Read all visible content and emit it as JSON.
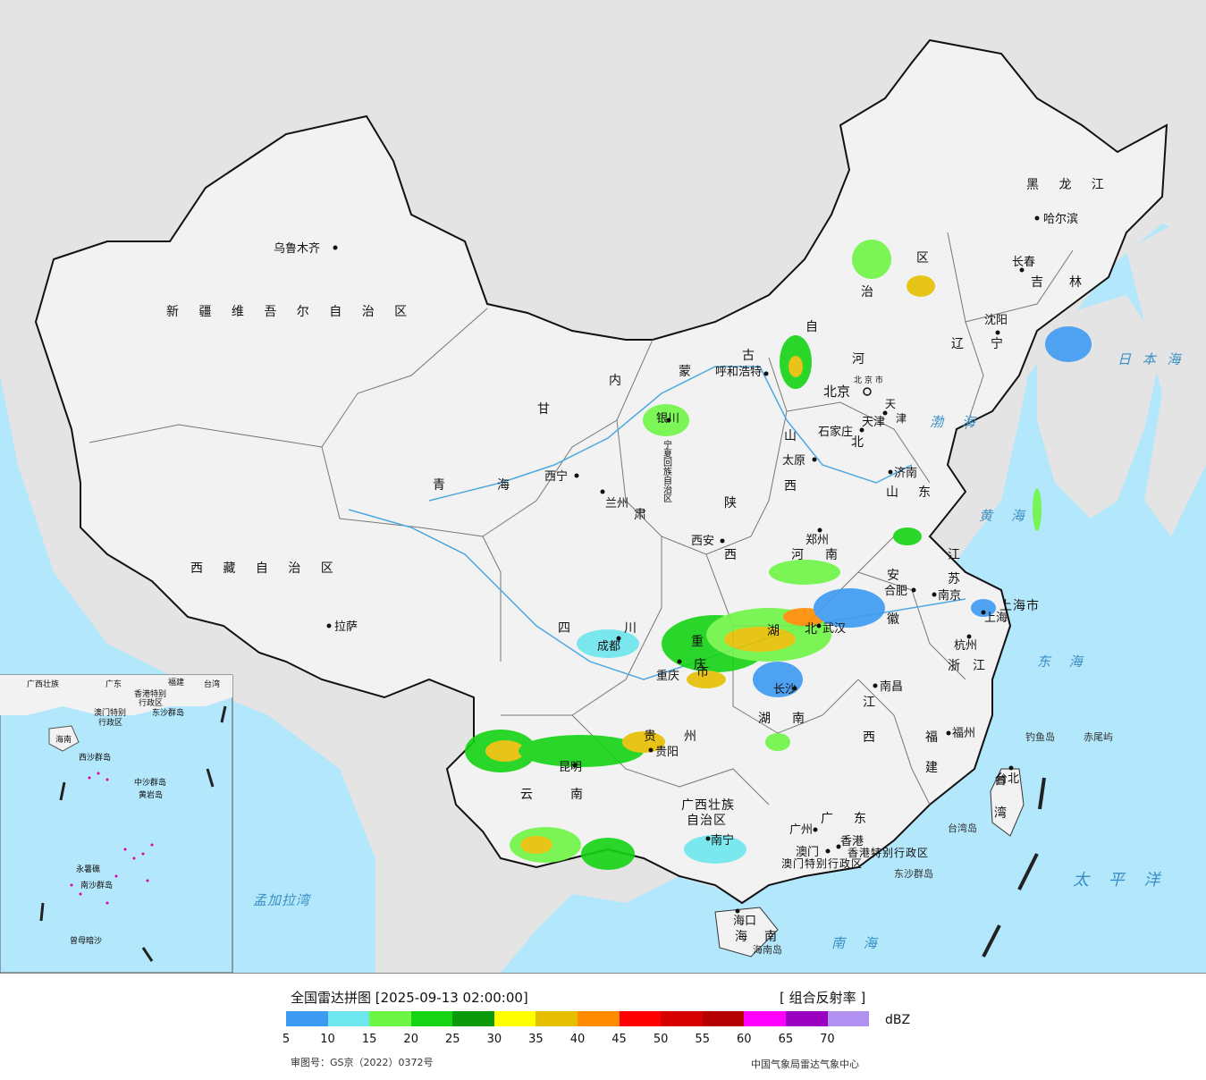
{
  "legend": {
    "title": "全国雷达拼图 [2025-09-13 02:00:00]",
    "product": "[ 组合反射率 ]",
    "unit": "dBZ",
    "colors": [
      "#3d9af2",
      "#6ee6ee",
      "#6ef645",
      "#14d414",
      "#0a9a0a",
      "#ffff00",
      "#e6c000",
      "#ff8c00",
      "#ff0000",
      "#d70000",
      "#b40000",
      "#ff00ff",
      "#9900c0",
      "#b090f0"
    ],
    "ticks": [
      "5",
      "10",
      "15",
      "20",
      "25",
      "30",
      "35",
      "40",
      "45",
      "50",
      "55",
      "60",
      "65",
      "70"
    ],
    "review_number": "审图号：GS京（2022）0372号",
    "source": "中国气象局雷达气象中心"
  },
  "map": {
    "colors": {
      "sea": "#b3e7fb",
      "land": "#f2f2f2",
      "foreign": "#e4e4e4",
      "border": "#111111",
      "river": "#4fa8e0"
    },
    "regions": [
      "新 疆 维 吾 尔 自 治 区",
      "西 藏 自 治 区",
      "青",
      "海",
      "甘",
      "肃",
      "四",
      "川",
      "云",
      "南",
      "内",
      "蒙",
      "古",
      "自",
      "治",
      "区",
      "黑 龙 江",
      "吉",
      "林",
      "辽",
      "宁",
      "河",
      "北",
      "山",
      "西",
      "陕",
      "西",
      "山",
      "东",
      "河",
      "南",
      "湖",
      "北",
      "湖",
      "南",
      "江",
      "西",
      "安",
      "徽",
      "江",
      "苏",
      "浙",
      "江",
      "福",
      "建",
      "广",
      "东",
      "广西壮族",
      "自治区",
      "贵",
      "州",
      "宁夏回族自治区",
      "海",
      "南",
      "台",
      "湾",
      "上海市",
      "重",
      "庆",
      "市",
      "天",
      "津",
      "北 京 市",
      "香港特别行政区",
      "澳门特别行政区"
    ],
    "cities": [
      "乌鲁木齐",
      "拉萨",
      "西宁",
      "兰州",
      "银川",
      "呼和浩特",
      "北京",
      "天津",
      "石家庄",
      "太原",
      "济南",
      "郑州",
      "西安",
      "成都",
      "重庆",
      "昆明",
      "贵阳",
      "南宁",
      "长沙",
      "武汉",
      "南昌",
      "合肥",
      "南京",
      "上海",
      "杭州",
      "福州",
      "台北",
      "广州",
      "澳门",
      "香港",
      "海口",
      "沈阳",
      "长春",
      "哈尔滨"
    ],
    "seas": [
      "渤 海",
      "黄 海",
      "东 海",
      "日 本 海",
      "太 平 洋",
      "南 海",
      "孟加拉湾",
      "南 海"
    ],
    "islands": [
      "钓鱼岛",
      "赤尾屿",
      "台湾岛",
      "东沙群岛",
      "海南岛"
    ],
    "inset_labels": [
      "广西壮族",
      "广东",
      "福建",
      "台湾",
      "香港特别",
      "行政区",
      "澳门特别",
      "行政区",
      "东沙群岛",
      "海南",
      "西沙群岛",
      "中沙群岛",
      "黄岩岛",
      "南 海",
      "永暑礁",
      "南沙群岛",
      "曾母暗沙"
    ]
  }
}
